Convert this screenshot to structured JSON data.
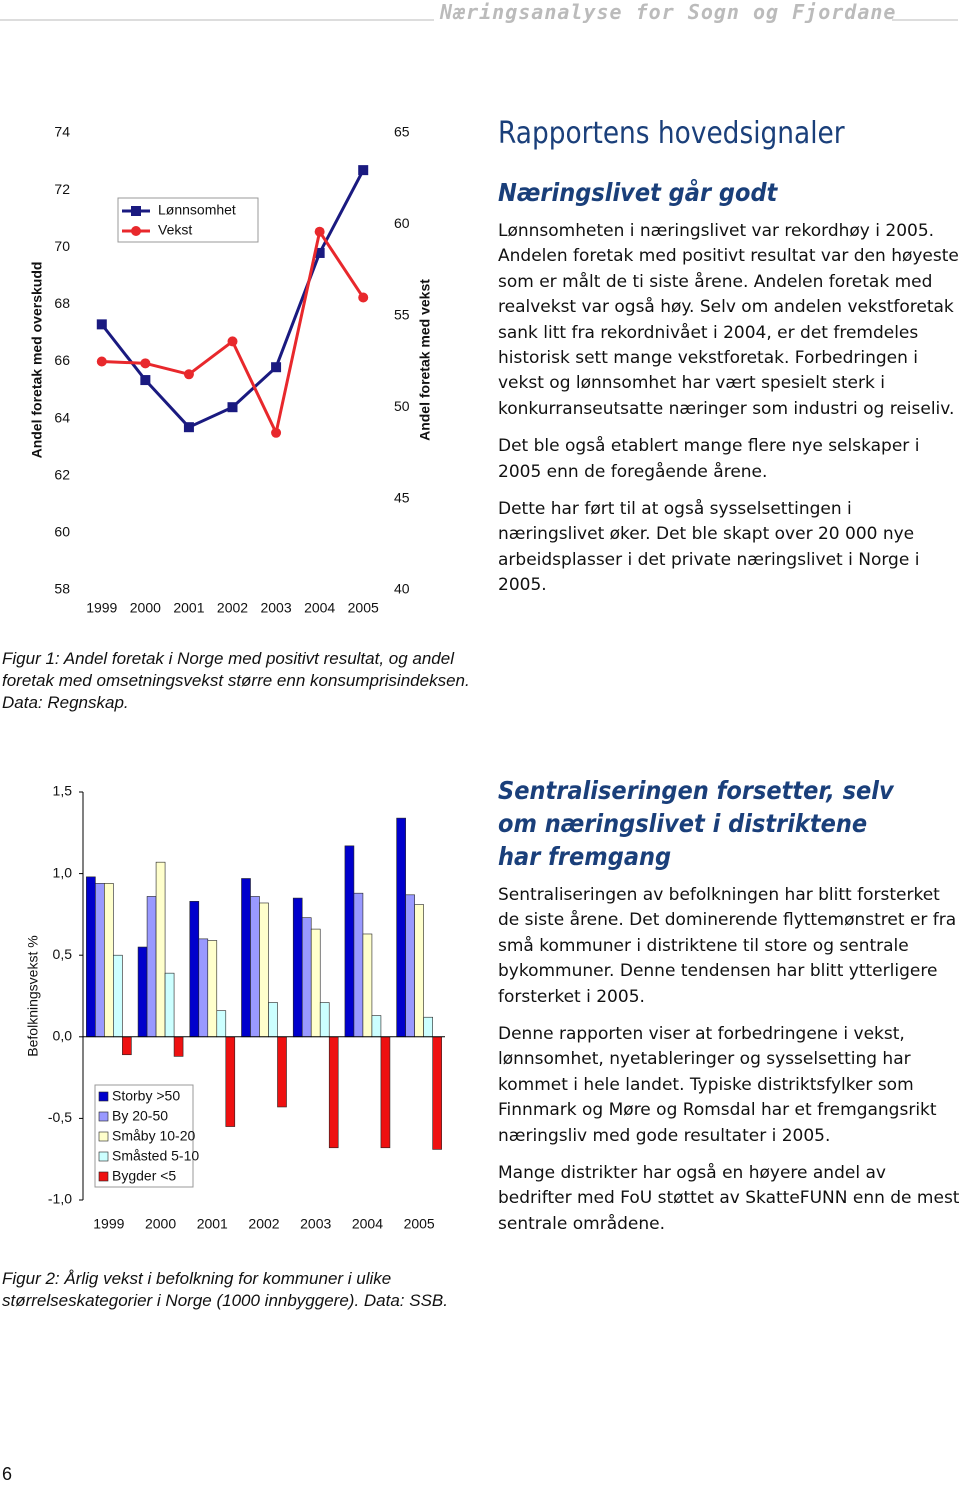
{
  "header": {
    "title": "Næringsanalyse for Sogn og Fjordane"
  },
  "page_number": "6",
  "chart_data": [
    {
      "type": "line",
      "caption": "Figur 1: Andel foretak i Norge med positivt resultat, og andel foretak med omsetningsvekst større enn konsumprisindeksen. Data: Regnskap.",
      "categories": [
        "1999",
        "2000",
        "2001",
        "2002",
        "2003",
        "2004",
        "2005"
      ],
      "ylabel": "Andel foretak med overskudd",
      "y2label": "Andel foretak med vekst",
      "ylim": [
        58,
        74
      ],
      "yticks": [
        58,
        60,
        62,
        64,
        66,
        68,
        70,
        72,
        74
      ],
      "y2lim": [
        40,
        65
      ],
      "y2ticks": [
        40,
        45,
        50,
        55,
        60,
        65
      ],
      "series": [
        {
          "name": "Lønnsomhet",
          "color": "#1a1a80",
          "marker": "square",
          "values": [
            67.3,
            65.35,
            63.7,
            64.4,
            65.8,
            69.8,
            72.7
          ]
        },
        {
          "name": "Vekst",
          "color": "#e8282c",
          "marker": "circle",
          "axis": "y2",
          "values": [
            52.5,
            52.4,
            51.8,
            53.6,
            48.6,
            59.6,
            56.0
          ]
        }
      ]
    },
    {
      "type": "bar",
      "caption": "Figur 2: Årlig vekst i befolkning for kommuner i ulike størrelseskategorier i Norge (1000 innbyggere). Data: SSB.",
      "categories": [
        "1999",
        "2000",
        "2001",
        "2002",
        "2003",
        "2004",
        "2005"
      ],
      "ylabel": "Befolkningsvekst %",
      "ylim": [
        -1,
        1.5
      ],
      "yticks": [
        {
          "value": -1,
          "label": "-1,0"
        },
        {
          "value": -0.5,
          "label": "-0,5"
        },
        {
          "value": 0,
          "label": "0,0"
        },
        {
          "value": 0.5,
          "label": "0,5"
        },
        {
          "value": 1,
          "label": "1,0"
        },
        {
          "value": 1.5,
          "label": "1,5"
        }
      ],
      "series": [
        {
          "name": "Storby >50",
          "color": "#0000cc",
          "values": [
            0.98,
            0.55,
            0.83,
            0.97,
            0.85,
            1.17,
            1.34
          ]
        },
        {
          "name": "By 20-50",
          "color": "#9999ff",
          "values": [
            0.94,
            0.86,
            0.6,
            0.86,
            0.73,
            0.88,
            0.87
          ]
        },
        {
          "name": "Småby 10-20",
          "color": "#ffffcc",
          "values": [
            0.94,
            1.07,
            0.59,
            0.82,
            0.66,
            0.63,
            0.81
          ]
        },
        {
          "name": "Småsted 5-10",
          "color": "#ccffff",
          "values": [
            0.5,
            0.39,
            0.16,
            0.21,
            0.21,
            0.13,
            0.12
          ]
        },
        {
          "name": "Bygder <5",
          "color": "#ee1111",
          "values": [
            -0.11,
            -0.12,
            -0.55,
            -0.43,
            -0.68,
            -0.68,
            -0.69
          ]
        }
      ]
    }
  ],
  "sections": {
    "title": "Rapportens hovedsignaler",
    "blocks": [
      {
        "heading": "Næringslivet går godt",
        "paragraphs": [
          "Lønnsomheten i næringslivet var rekordhøy i 2005. Andelen foretak med positivt resultat var den høyeste som er målt de ti siste årene. Andelen foretak med realvekst var også høy. Selv om andelen vekstforetak sank litt fra rekordnivået i 2004, er det fremdeles historisk sett mange vekstforetak. Forbedringen i vekst og lønnsomhet har vært spesielt sterk i konkurranseutsatte næringer som industri og reiseliv.",
          "Det ble også etablert mange flere nye selskaper i 2005 enn de foregående årene.",
          "Dette har ført til at også sysselsettingen i næringslivet øker. Det ble skapt over 20 000 nye arbeidsplasser i det private næringslivet i Norge i 2005."
        ]
      },
      {
        "heading": "Sentraliseringen forsetter, selv om næringslivet i distriktene har fremgang",
        "paragraphs": [
          "Sentraliseringen av befolkningen har blitt forsterket de siste årene. Det dominerende flyttemønstret er fra små kommuner i distriktene til store og sentrale bykommuner. Denne tendensen har blitt ytterligere forsterket i 2005.",
          "Denne rapporten viser at forbedringene i vekst, lønnsomhet, nyetableringer og sysselsetting har kommet i hele landet. Typiske distriktsfylker som Finnmark og Møre og Romsdal har et fremgangsrikt næringsliv med gode resultater i 2005.",
          "Mange distrikter har også en høyere andel av bedrifter med FoU støttet av SkatteFUNN enn de mest sentrale områdene."
        ]
      }
    ]
  }
}
